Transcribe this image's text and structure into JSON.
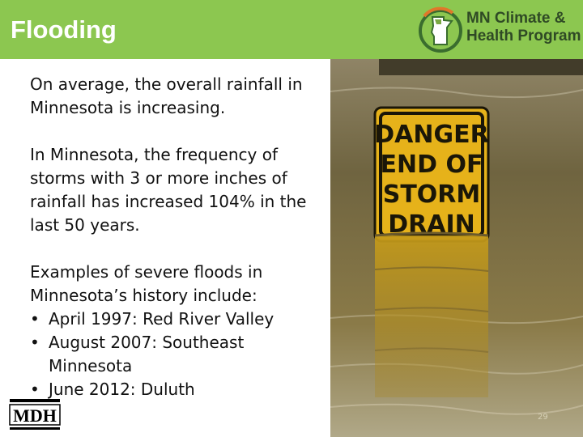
{
  "slide": {
    "title": "Flooding",
    "page_number": "29"
  },
  "logo": {
    "line1": "MN Climate &",
    "line2": "Health Program",
    "icon": "minnesota-state-icon"
  },
  "content": {
    "paragraph1": "On average, the overall rainfall in Minnesota is increasing.",
    "paragraph2": "In Minnesota, the frequency of storms with 3 or more inches of rainfall has increased 104% in the last 50 years.",
    "examples_intro": "Examples of severe floods in Minnesota’s history include:",
    "bullet_char": "•",
    "examples": [
      "April 1997: Red River Valley",
      "August 2007: Southeast Minnesota",
      "June 2012: Duluth"
    ]
  },
  "photo": {
    "sign_lines": [
      "DANGER",
      "END OF",
      "STORM",
      "DRAIN"
    ]
  },
  "mdh": {
    "abbr": "MDH"
  },
  "colors": {
    "header_green": "#8cc750",
    "sign_yellow": "#e6b21a",
    "water_brown": "#6b5a2c"
  }
}
